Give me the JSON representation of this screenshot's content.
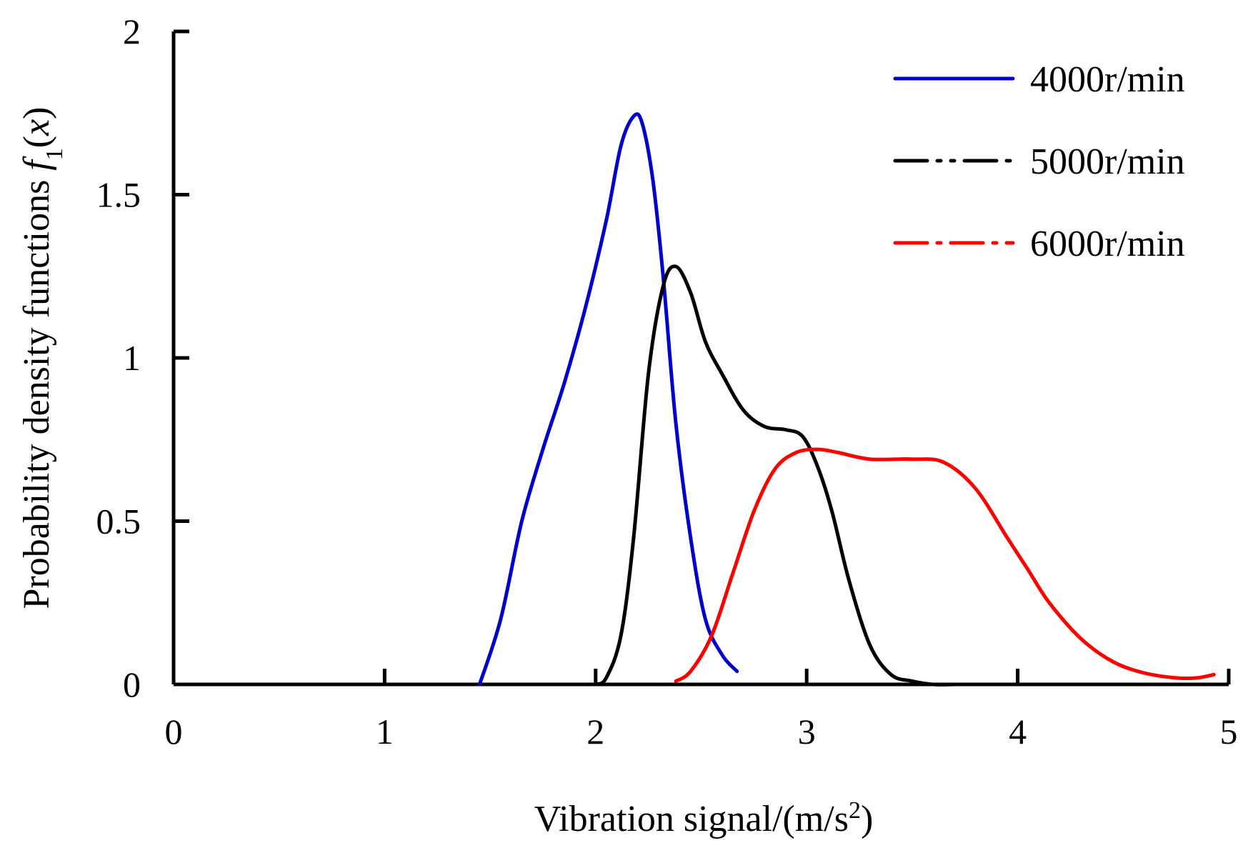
{
  "chart_data": {
    "type": "line",
    "title": "",
    "xlabel": "Vibration signal/(m/s",
    "xlabel_sup": "2",
    "xlabel_end": ")",
    "ylabel_text": "Probability density functions ",
    "ylabel_f": "f",
    "ylabel_sub": "1",
    "ylabel_paren_open": "(",
    "ylabel_x": "x",
    "ylabel_paren_close": ")",
    "xlim": [
      0,
      5
    ],
    "ylim": [
      0,
      2
    ],
    "xticks": [
      0,
      1,
      2,
      3,
      4,
      5
    ],
    "xtick_labels": [
      "0",
      "1",
      "2",
      "3",
      "4",
      "5"
    ],
    "yticks": [
      0,
      0.5,
      1,
      1.5,
      2
    ],
    "ytick_labels": [
      "0",
      "0.5",
      "1",
      "1.5",
      "2"
    ],
    "grid": false,
    "legend_position": "top-right",
    "series": [
      {
        "name": "4000r/min",
        "color": "#0000cc",
        "line_style": "solid",
        "x": [
          1.45,
          1.55,
          1.65,
          1.75,
          1.85,
          1.95,
          2.05,
          2.12,
          2.18,
          2.22,
          2.27,
          2.32,
          2.38,
          2.45,
          2.52,
          2.6,
          2.67
        ],
        "y": [
          0.0,
          0.2,
          0.5,
          0.72,
          0.92,
          1.15,
          1.42,
          1.65,
          1.74,
          1.72,
          1.55,
          1.25,
          0.8,
          0.45,
          0.2,
          0.09,
          0.04
        ]
      },
      {
        "name": "5000r/min",
        "color": "#000000",
        "line_style": "dash-dot-dot",
        "x": [
          2.0,
          2.05,
          2.12,
          2.18,
          2.25,
          2.32,
          2.38,
          2.45,
          2.52,
          2.6,
          2.7,
          2.8,
          2.9,
          2.98,
          3.05,
          3.12,
          3.2,
          3.3,
          3.4,
          3.5,
          3.6,
          3.7
        ],
        "y": [
          0.0,
          0.02,
          0.15,
          0.45,
          0.95,
          1.22,
          1.28,
          1.2,
          1.05,
          0.95,
          0.84,
          0.79,
          0.78,
          0.76,
          0.67,
          0.53,
          0.32,
          0.12,
          0.03,
          0.01,
          0.0,
          0.0
        ]
      },
      {
        "name": "6000r/min",
        "color": "#ff0000",
        "line_style": "dash-dot",
        "x": [
          2.38,
          2.45,
          2.55,
          2.65,
          2.75,
          2.85,
          2.95,
          3.05,
          3.15,
          3.3,
          3.5,
          3.65,
          3.8,
          3.95,
          4.05,
          4.15,
          4.3,
          4.45,
          4.6,
          4.75,
          4.85,
          4.93
        ],
        "y": [
          0.01,
          0.04,
          0.15,
          0.34,
          0.53,
          0.66,
          0.71,
          0.72,
          0.71,
          0.69,
          0.69,
          0.68,
          0.6,
          0.45,
          0.35,
          0.25,
          0.14,
          0.07,
          0.035,
          0.02,
          0.02,
          0.03
        ]
      }
    ]
  }
}
